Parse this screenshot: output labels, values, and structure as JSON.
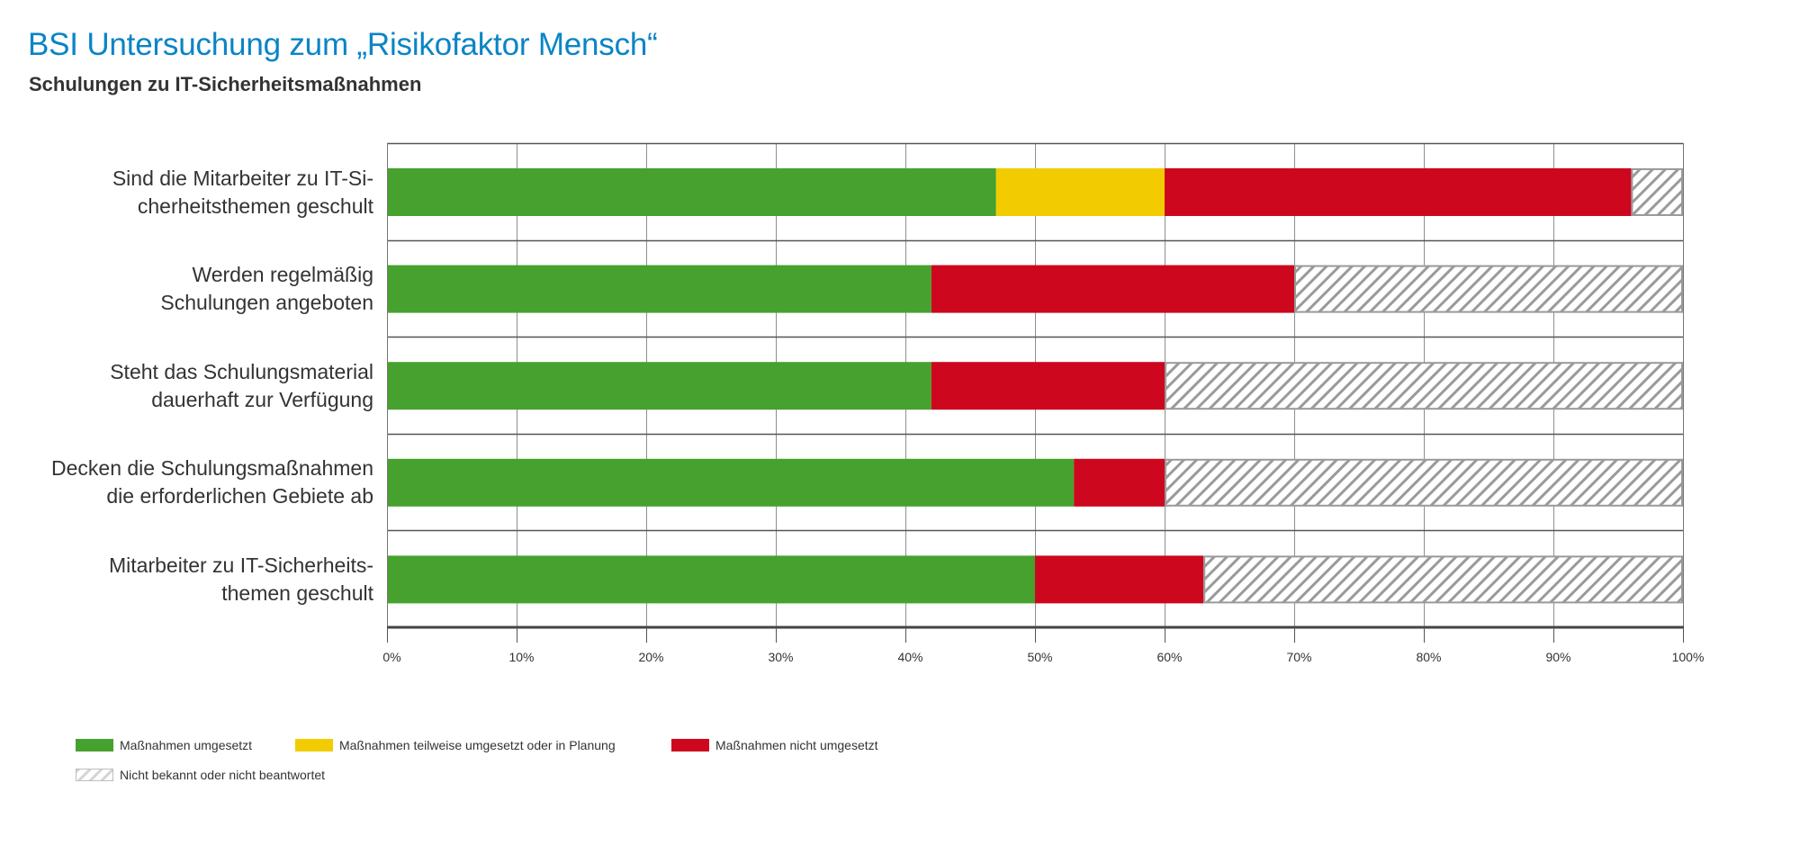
{
  "header": {
    "title": "BSI Untersuchung zum „Risikofaktor Mensch“",
    "subtitle": "Schulungen zu IT-Sicherheitsmaßnahmen"
  },
  "colors": {
    "title": "#0a84c6",
    "umgesetzt": "#46a12f",
    "teilweise": "#f2cc00",
    "nicht_umgesetzt": "#cc071e",
    "hatch": "#9a9a9a"
  },
  "chart_data": {
    "type": "bar",
    "orientation": "horizontal",
    "stacked": true,
    "title": "BSI Untersuchung zum „Risikofaktor Mensch“",
    "subtitle": "Schulungen zu IT-Sicherheitsmaßnahmen",
    "xlabel": "",
    "ylabel": "",
    "xlim": [
      0,
      100
    ],
    "grid": true,
    "legend_position": "bottom-left",
    "categories": [
      [
        "Sind die Mitarbeiter zu IT-Si-",
        "cherheitsthemen geschult"
      ],
      [
        "Werden regelmäßig",
        "Schulungen angeboten"
      ],
      [
        "Steht das Schulungsmaterial",
        "dauerhaft zur Verfügung"
      ],
      [
        "Decken die Schulungsmaßnahmen",
        "die erforderlichen Gebiete ab"
      ],
      [
        "Mitarbeiter zu IT-Sicherheits-",
        "themen geschult"
      ]
    ],
    "x_ticks": [
      "0%",
      "10%",
      "20%",
      "30%",
      "40%",
      "50%",
      "60%",
      "70%",
      "80%",
      "90%",
      "100%"
    ],
    "series": [
      {
        "name": "Maßnahmen umgesetzt",
        "key": "umgesetzt",
        "values": [
          47,
          42,
          42,
          53,
          50
        ]
      },
      {
        "name": "Maßnahmen teilweise umgesetzt oder in Planung",
        "key": "teilweise",
        "values": [
          13,
          0,
          0,
          0,
          0
        ]
      },
      {
        "name": "Maßnahmen nicht umgesetzt",
        "key": "nicht_umgesetzt",
        "values": [
          36,
          28,
          18,
          7,
          13
        ]
      },
      {
        "name": "Nicht bekannt oder nicht beantwortet",
        "key": "hatch",
        "values": [
          4,
          30,
          40,
          40,
          37
        ]
      }
    ]
  },
  "legend": {
    "items": [
      {
        "label": "Maßnahmen umgesetzt",
        "key": "umgesetzt"
      },
      {
        "label": "Maßnahmen teilweise umgesetzt oder in Planung",
        "key": "teilweise"
      },
      {
        "label": "Maßnahmen nicht umgesetzt",
        "key": "nicht_umgesetzt"
      },
      {
        "label": "Nicht bekannt oder nicht beantwortet",
        "key": "hatch"
      }
    ]
  }
}
